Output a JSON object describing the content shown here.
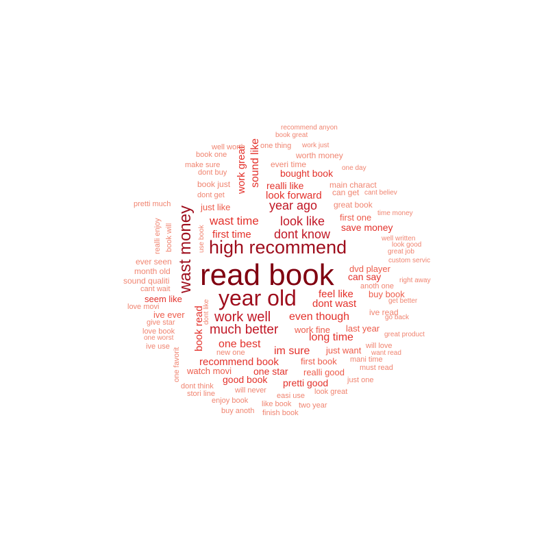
{
  "colors": {
    "tier1": "#800010",
    "tier2": "#9e0d1c",
    "tier3": "#c11624",
    "tier4": "#e3302a",
    "tier5": "#ed5b4a",
    "tier6": "#f08470",
    "background": "#ffffff"
  },
  "words": [
    {
      "text": "read book",
      "tier": 1
    },
    {
      "text": "year old",
      "tier": 2
    },
    {
      "text": "high recommend",
      "tier": 2
    },
    {
      "text": "wast money",
      "tier": 2
    },
    {
      "text": "work well",
      "tier": 3
    },
    {
      "text": "much better",
      "tier": 3
    },
    {
      "text": "look like",
      "tier": 3
    },
    {
      "text": "dont know",
      "tier": 3
    },
    {
      "text": "year ago",
      "tier": 3
    },
    {
      "text": "wast time",
      "tier": 4
    },
    {
      "text": "even though",
      "tier": 4
    },
    {
      "text": "long time",
      "tier": 4
    },
    {
      "text": "one best",
      "tier": 4
    },
    {
      "text": "im sure",
      "tier": 4
    },
    {
      "text": "dont wast",
      "tier": 4
    },
    {
      "text": "feel like",
      "tier": 4
    },
    {
      "text": "sound like",
      "tier": 4
    },
    {
      "text": "work great",
      "tier": 4
    },
    {
      "text": "book read",
      "tier": 4
    },
    {
      "text": "first time",
      "tier": 4
    },
    {
      "text": "save money",
      "tier": 4
    },
    {
      "text": "recommend book",
      "tier": 4
    },
    {
      "text": "look forward",
      "tier": 4
    },
    {
      "text": "realli like",
      "tier": 4
    },
    {
      "text": "bought book",
      "tier": 4
    },
    {
      "text": "one star",
      "tier": 4
    },
    {
      "text": "good book",
      "tier": 4
    },
    {
      "text": "pretti good",
      "tier": 4
    },
    {
      "text": "seem like",
      "tier": 4
    },
    {
      "text": "can say",
      "tier": 4
    },
    {
      "text": "dvd player",
      "tier": 5
    },
    {
      "text": "buy book",
      "tier": 5
    },
    {
      "text": "last year",
      "tier": 5
    },
    {
      "text": "work fine",
      "tier": 5
    },
    {
      "text": "just want",
      "tier": 5
    },
    {
      "text": "first book",
      "tier": 5
    },
    {
      "text": "realli good",
      "tier": 5
    },
    {
      "text": "watch movi",
      "tier": 5
    },
    {
      "text": "just like",
      "tier": 5
    },
    {
      "text": "first one",
      "tier": 5
    },
    {
      "text": "ive ever",
      "tier": 5
    },
    {
      "text": "ive read",
      "tier": 6
    },
    {
      "text": "anoth one",
      "tier": 6
    },
    {
      "text": "will love",
      "tier": 6
    },
    {
      "text": "mani time",
      "tier": 6
    },
    {
      "text": "must read",
      "tier": 6
    },
    {
      "text": "just one",
      "tier": 6
    },
    {
      "text": "look great",
      "tier": 6
    },
    {
      "text": "two year",
      "tier": 6
    },
    {
      "text": "easi use",
      "tier": 6
    },
    {
      "text": "will never",
      "tier": 6
    },
    {
      "text": "enjoy book",
      "tier": 6
    },
    {
      "text": "buy anoth",
      "tier": 6
    },
    {
      "text": "finish book",
      "tier": 6
    },
    {
      "text": "like book",
      "tier": 6
    },
    {
      "text": "stori line",
      "tier": 6
    },
    {
      "text": "dont think",
      "tier": 6
    },
    {
      "text": "new one",
      "tier": 6
    },
    {
      "text": "one favorit",
      "tier": 6
    },
    {
      "text": "ive use",
      "tier": 6
    },
    {
      "text": "one worst",
      "tier": 6
    },
    {
      "text": "love book",
      "tier": 6
    },
    {
      "text": "give star",
      "tier": 6
    },
    {
      "text": "love movi",
      "tier": 6
    },
    {
      "text": "cant wait",
      "tier": 6
    },
    {
      "text": "sound qualiti",
      "tier": 6
    },
    {
      "text": "month old",
      "tier": 6
    },
    {
      "text": "ever seen",
      "tier": 6
    },
    {
      "text": "realli enjoy",
      "tier": 6
    },
    {
      "text": "book will",
      "tier": 6
    },
    {
      "text": "use book",
      "tier": 6
    },
    {
      "text": "dont like",
      "tier": 6
    },
    {
      "text": "pretti much",
      "tier": 6
    },
    {
      "text": "book just",
      "tier": 6
    },
    {
      "text": "dont get",
      "tier": 6
    },
    {
      "text": "dont buy",
      "tier": 6
    },
    {
      "text": "make sure",
      "tier": 6
    },
    {
      "text": "book one",
      "tier": 6
    },
    {
      "text": "well worth",
      "tier": 6
    },
    {
      "text": "one thing",
      "tier": 6
    },
    {
      "text": "work just",
      "tier": 6
    },
    {
      "text": "worth money",
      "tier": 6
    },
    {
      "text": "everi time",
      "tier": 6
    },
    {
      "text": "one day",
      "tier": 6
    },
    {
      "text": "recommend anyon",
      "tier": 6
    },
    {
      "text": "book great",
      "tier": 6
    },
    {
      "text": "main charact",
      "tier": 6
    },
    {
      "text": "can get",
      "tier": 6
    },
    {
      "text": "cant believ",
      "tier": 6
    },
    {
      "text": "great book",
      "tier": 6
    },
    {
      "text": "time money",
      "tier": 6
    },
    {
      "text": "well written",
      "tier": 6
    },
    {
      "text": "look good",
      "tier": 6
    },
    {
      "text": "great job",
      "tier": 6
    },
    {
      "text": "custom servic",
      "tier": 6
    },
    {
      "text": "right away",
      "tier": 6
    },
    {
      "text": "get better",
      "tier": 6
    },
    {
      "text": "go back",
      "tier": 6
    },
    {
      "text": "great product",
      "tier": 6
    },
    {
      "text": "want read",
      "tier": 6
    }
  ]
}
